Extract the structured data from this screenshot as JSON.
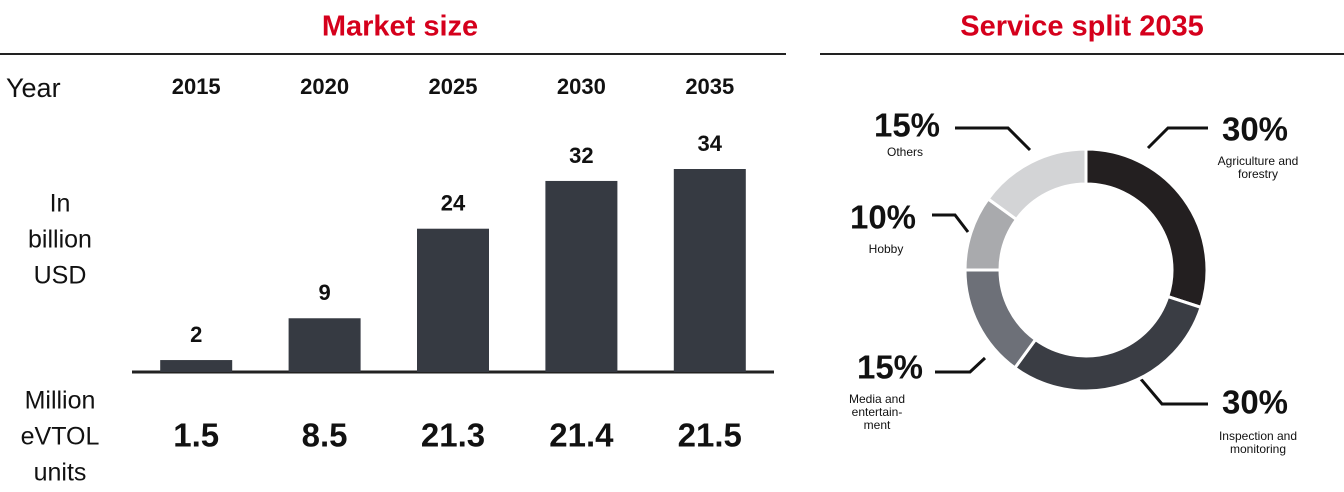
{
  "chart_data": [
    {
      "type": "bar",
      "title": "Market size",
      "row_label": "Year",
      "y_label": [
        "In",
        "billion",
        "USD"
      ],
      "categories": [
        "2015",
        "2020",
        "2025",
        "2030",
        "2035"
      ],
      "values": [
        2,
        9,
        24,
        32,
        34
      ],
      "color": "#363a42",
      "units": {
        "label": [
          "Million",
          "eVTOL",
          "units"
        ],
        "values": [
          1.5,
          8.5,
          21.3,
          21.4,
          21.5
        ]
      }
    },
    {
      "type": "donut",
      "title": "Service split 2035",
      "categories": [
        [
          "Agriculture and",
          "forestry"
        ],
        [
          "Inspection and",
          "monitoring"
        ],
        [
          "Media and",
          "entertain-",
          "ment"
        ],
        [
          "Hobby"
        ],
        [
          "Others"
        ]
      ],
      "values": [
        30,
        30,
        15,
        10,
        15
      ],
      "value_labels": [
        "30%",
        "30%",
        "15%",
        "10%",
        "15%"
      ],
      "colors": [
        "#231f20",
        "#3a3d44",
        "#6d7078",
        "#a9aaad",
        "#d3d4d6"
      ]
    }
  ]
}
